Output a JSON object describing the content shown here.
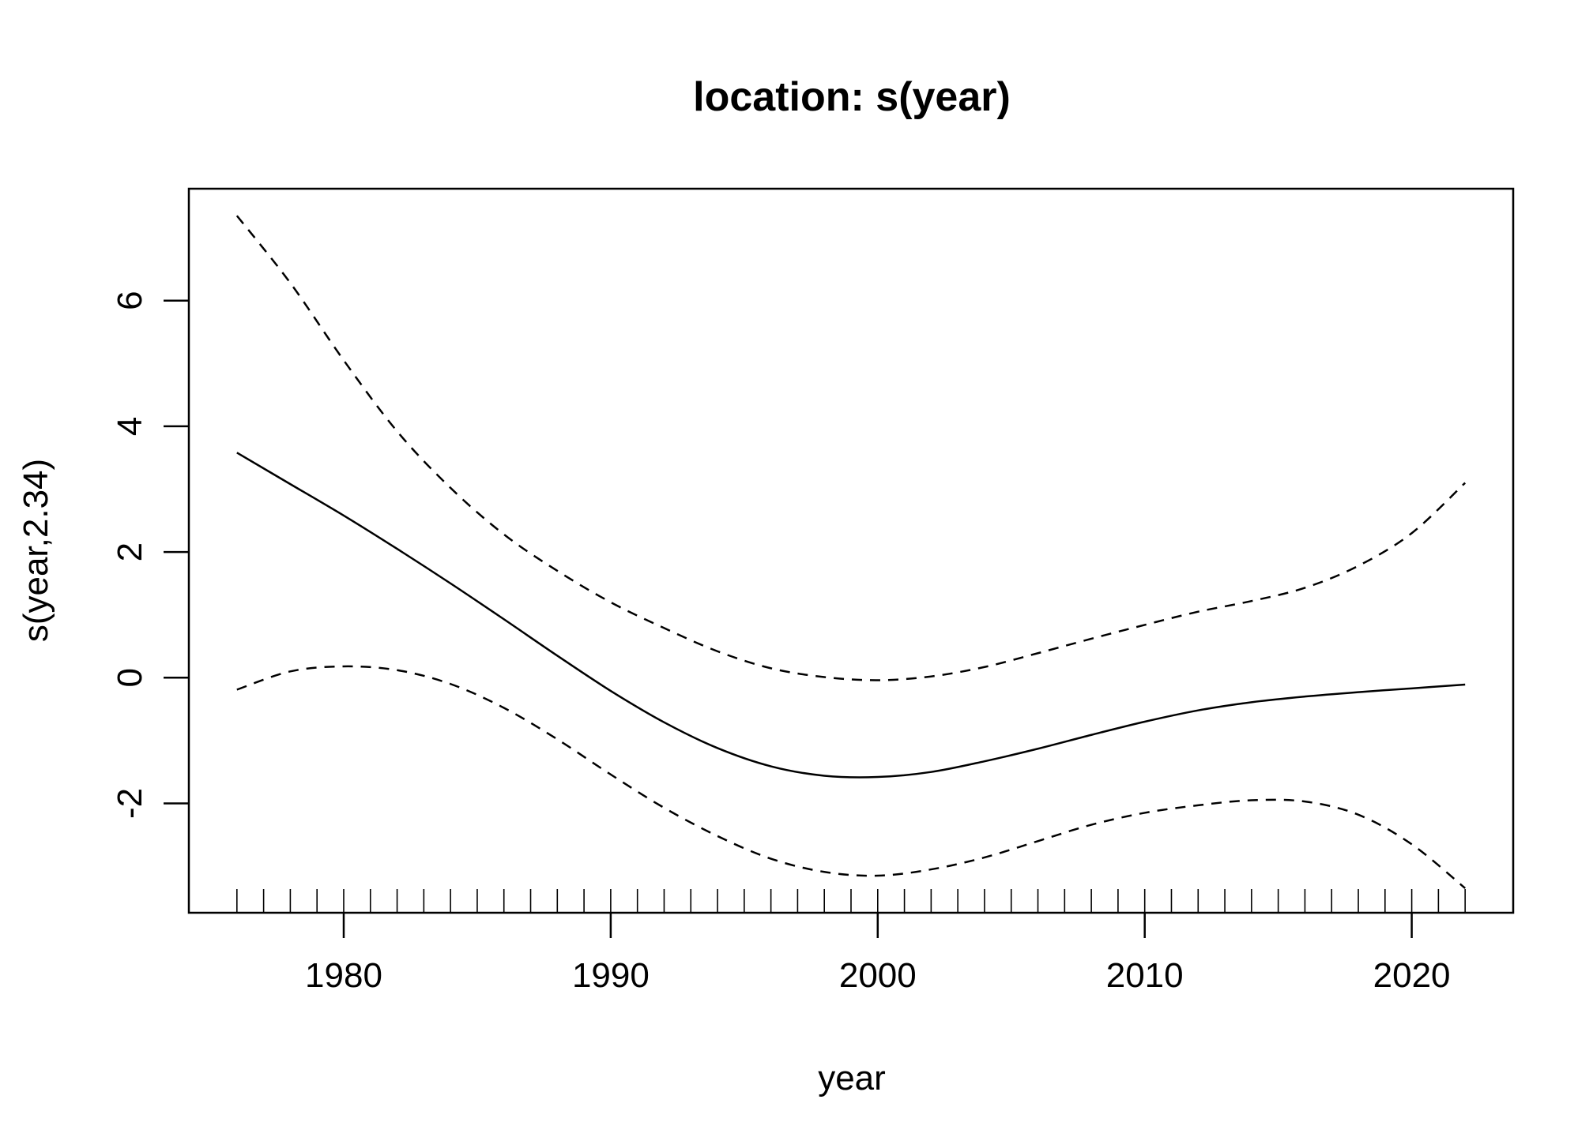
{
  "chart_data": {
    "type": "line",
    "title": "location: s(year)",
    "xlabel": "year",
    "ylabel": "s(year,2.34)",
    "xlim": [
      1974.2,
      2023.8
    ],
    "ylim": [
      -3.74,
      7.78
    ],
    "x_ticks": [
      1980,
      1990,
      2000,
      2010,
      2020
    ],
    "y_ticks": [
      -2,
      0,
      2,
      4,
      6
    ],
    "grid": false,
    "legend": "none",
    "rug_years": [
      1976,
      1977,
      1978,
      1979,
      1980,
      1981,
      1982,
      1983,
      1984,
      1985,
      1986,
      1987,
      1988,
      1989,
      1990,
      1991,
      1992,
      1993,
      1994,
      1995,
      1996,
      1997,
      1998,
      1999,
      2000,
      2001,
      2002,
      2003,
      2004,
      2005,
      2006,
      2007,
      2008,
      2009,
      2010,
      2011,
      2012,
      2013,
      2014,
      2015,
      2016,
      2017,
      2018,
      2019,
      2020,
      2021,
      2022
    ],
    "series": [
      {
        "style": "solid",
        "x": [
          1976,
          1978,
          1980,
          1982,
          1984,
          1986,
          1988,
          1990,
          1992,
          1994,
          1996,
          1998,
          2000,
          2002,
          2004,
          2006,
          2008,
          2010,
          2012,
          2014,
          2016,
          2018,
          2020,
          2022
        ],
        "y": [
          3.58,
          3.08,
          2.58,
          2.05,
          1.5,
          0.93,
          0.35,
          -0.21,
          -0.71,
          -1.12,
          -1.41,
          -1.56,
          -1.58,
          -1.5,
          -1.33,
          -1.13,
          -0.91,
          -0.7,
          -0.52,
          -0.39,
          -0.3,
          -0.23,
          -0.17,
          -0.11
        ]
      },
      {
        "style": "dashed",
        "x": [
          1976,
          1978,
          1980,
          1982,
          1984,
          1986,
          1988,
          1990,
          1992,
          1994,
          1996,
          1998,
          2000,
          2002,
          2004,
          2006,
          2008,
          2010,
          2012,
          2014,
          2016,
          2018,
          2020,
          2022
        ],
        "y": [
          7.35,
          6.28,
          5.05,
          3.92,
          3.02,
          2.28,
          1.7,
          1.2,
          0.79,
          0.42,
          0.15,
          0.01,
          -0.04,
          0.02,
          0.17,
          0.39,
          0.62,
          0.84,
          1.05,
          1.22,
          1.43,
          1.78,
          2.3,
          3.1
        ]
      },
      {
        "style": "dashed",
        "x": [
          1976,
          1978,
          1980,
          1982,
          1984,
          1986,
          1988,
          1990,
          1992,
          1994,
          1996,
          1998,
          2000,
          2002,
          2004,
          2006,
          2008,
          2010,
          2012,
          2014,
          2016,
          2018,
          2020,
          2022
        ],
        "y": [
          -0.19,
          0.1,
          0.18,
          0.12,
          -0.1,
          -0.48,
          -0.98,
          -1.54,
          -2.07,
          -2.52,
          -2.88,
          -3.09,
          -3.15,
          -3.05,
          -2.86,
          -2.6,
          -2.34,
          -2.15,
          -2.03,
          -1.95,
          -1.97,
          -2.18,
          -2.65,
          -3.35
        ]
      }
    ]
  }
}
